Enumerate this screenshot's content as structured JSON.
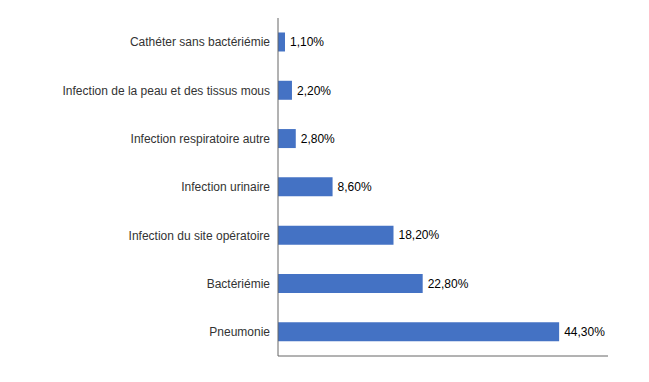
{
  "chart_data": {
    "type": "bar",
    "orientation": "horizontal",
    "categories": [
      "Pneumonie",
      "Bactériémie",
      "Infection du site opératoire",
      "Infection urinaire",
      "Infection respiratoire autre",
      "Infection de la peau et des tissus mous",
      "Cathéter sans bactériémie"
    ],
    "values": [
      44.3,
      22.8,
      18.2,
      8.6,
      2.8,
      2.2,
      1.1
    ],
    "value_labels": [
      "44,30%",
      "22,80%",
      "18,20%",
      "8,60%",
      "2,80%",
      "2,20%",
      "1,10%"
    ],
    "data_labels": true,
    "color": "#4472C4",
    "xlim": [
      0,
      52
    ],
    "tick_labels": "y",
    "grid": false
  }
}
